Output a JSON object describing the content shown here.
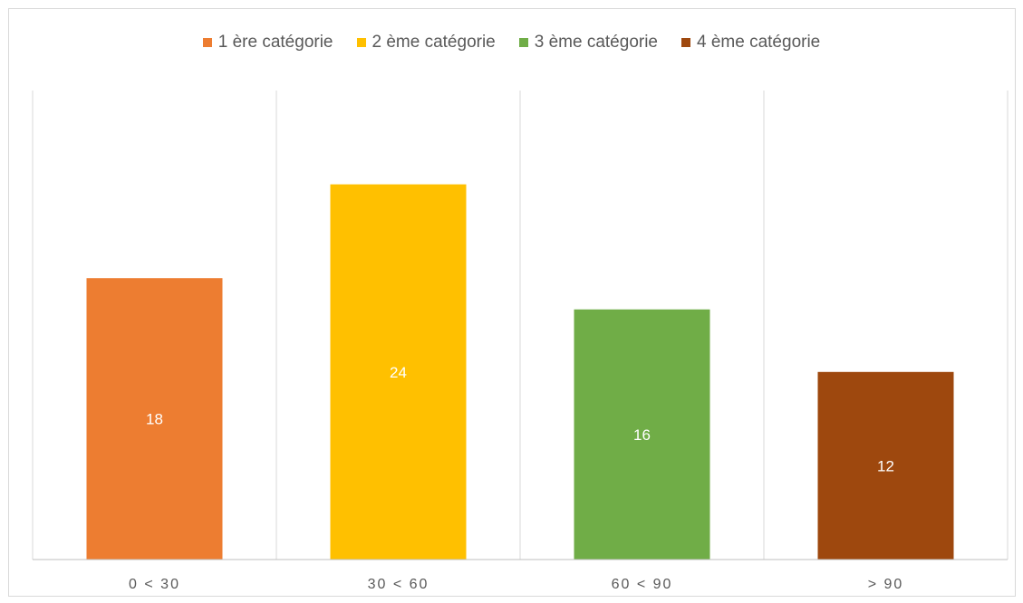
{
  "chart_data": {
    "type": "bar",
    "categories": [
      "0 < 30",
      "30 < 60",
      "60 < 90",
      "> 90"
    ],
    "series": [
      {
        "name": "1 ère catégorie",
        "category": "0 < 30",
        "value": 18,
        "color": "#ED7D31"
      },
      {
        "name": "2 ème catégorie",
        "category": "30 < 60",
        "value": 24,
        "color": "#FFC000"
      },
      {
        "name": "3 ème catégorie",
        "category": "60 < 90",
        "value": 16,
        "color": "#70AD47"
      },
      {
        "name": "4 ème catégorie",
        "category": "> 90",
        "value": 12,
        "color": "#9E480E"
      }
    ],
    "title": "",
    "xlabel": "",
    "ylabel": "",
    "ylim": [
      0,
      30
    ],
    "grid": "vertical category separators",
    "legend_position": "top"
  }
}
